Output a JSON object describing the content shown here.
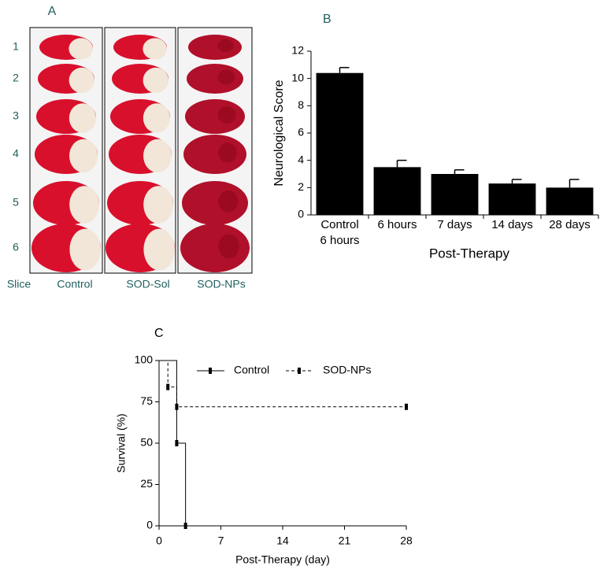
{
  "panel_a": {
    "label": "A",
    "slices": [
      "1",
      "2",
      "3",
      "4",
      "5",
      "6"
    ],
    "row_label": "Slice",
    "columns": [
      "Control",
      "SOD-Sol",
      "SOD-NPs"
    ]
  },
  "chart_data": [
    {
      "type": "bar",
      "label": "B",
      "ylabel": "Neurological Score",
      "xlabel": "Post-Therapy",
      "categories": [
        [
          "Control",
          "6 hours"
        ],
        [
          "6 hours"
        ],
        [
          "7 days"
        ],
        [
          "14 days"
        ],
        [
          "28 days"
        ]
      ],
      "values": [
        10.4,
        3.5,
        3.0,
        2.3,
        2.0
      ],
      "errors": [
        0.4,
        0.5,
        0.3,
        0.3,
        0.6
      ],
      "color": "#000000",
      "ylim": [
        0,
        12
      ],
      "yticks": [
        0,
        2,
        4,
        6,
        8,
        10,
        12
      ]
    },
    {
      "type": "step",
      "label": "C",
      "ylabel": "Survival (%)",
      "xlabel": "Post-Therapy (day)",
      "xlim": [
        0,
        28
      ],
      "xticks": [
        0,
        7,
        14,
        21,
        28
      ],
      "ylim": [
        0,
        100
      ],
      "yticks": [
        0,
        25,
        50,
        75,
        100
      ],
      "legend": "upper right",
      "series": [
        {
          "name": "Control",
          "color": "#000000",
          "style": "solid",
          "x": [
            0,
            2,
            2,
            3,
            3
          ],
          "values": [
            100,
            100,
            50,
            50,
            0
          ]
        },
        {
          "name": "SOD-NPs",
          "color": "#000000",
          "style": "dashed",
          "x": [
            0,
            1,
            1,
            2,
            2,
            28
          ],
          "values": [
            100,
            100,
            84,
            84,
            72,
            72
          ]
        }
      ]
    }
  ]
}
